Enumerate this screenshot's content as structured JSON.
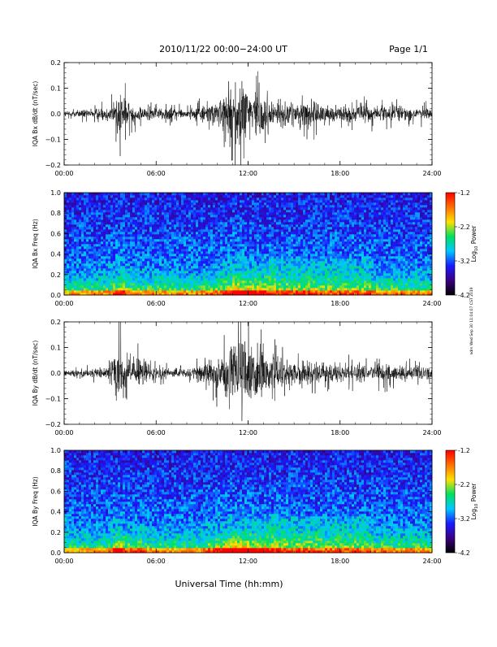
{
  "header": {
    "title": "2010/11/22  00:00−24:00 UT",
    "page": "Page 1/1"
  },
  "footer": {
    "xlabel": "Universal Time (hh:mm)"
  },
  "side_stamp": "ndm Wed Sep 30 11:04:07 CST 2019",
  "colorbar": {
    "label_base": "Log",
    "label_sub": "10",
    "label_tail": " Power",
    "ticks": [
      "-1.2",
      "-2.2",
      "-3.2",
      "-4.2"
    ],
    "colors": [
      "#000000",
      "#3a0080",
      "#1a1aff",
      "#00c8ff",
      "#00e060",
      "#ffe000",
      "#ff7000",
      "#ff0000"
    ]
  },
  "chart_data": [
    {
      "type": "line",
      "ylabel": "IQA Bx dB/dt (nT/sec)",
      "xlim": [
        0,
        24
      ],
      "ylim": [
        -0.2,
        0.2
      ],
      "x_ticks": [
        "00:00",
        "06:00",
        "12:00",
        "18:00",
        "24:00"
      ],
      "y_ticks": [
        "0.2",
        "0.1",
        "0.0",
        "−0.1",
        "−0.2"
      ],
      "x_tick_values": [
        0,
        6,
        12,
        18,
        24
      ],
      "y_tick_values": [
        0.2,
        0.1,
        0.0,
        -0.1,
        -0.2
      ],
      "description_envelope": {
        "hours": [
          0,
          2,
          3,
          3.7,
          4.3,
          5,
          6,
          7,
          8,
          9,
          10,
          10.5,
          11,
          11.5,
          12,
          12.5,
          13,
          13.5,
          14,
          15,
          16,
          17,
          18,
          19,
          20,
          21,
          22,
          23,
          24
        ],
        "amplitude": [
          0.02,
          0.03,
          0.05,
          0.15,
          0.06,
          0.05,
          0.04,
          0.04,
          0.03,
          0.05,
          0.08,
          0.12,
          0.2,
          0.2,
          0.2,
          0.16,
          0.12,
          0.1,
          0.09,
          0.07,
          0.09,
          0.06,
          0.05,
          0.05,
          0.06,
          0.05,
          0.05,
          0.04,
          0.04
        ]
      }
    },
    {
      "type": "heatmap",
      "ylabel": "IQA Bx Freq (Hz)",
      "xlim": [
        0,
        24
      ],
      "ylim": [
        0.0,
        1.0
      ],
      "x_ticks": [
        "00:00",
        "06:00",
        "12:00",
        "18:00",
        "24:00"
      ],
      "y_ticks": [
        "1.0",
        "0.8",
        "0.6",
        "0.4",
        "0.2",
        "0.0"
      ],
      "x_tick_values": [
        0,
        6,
        12,
        18,
        24
      ],
      "y_tick_values": [
        1.0,
        0.8,
        0.6,
        0.4,
        0.2,
        0.0
      ],
      "zlim": [
        -4.2,
        -1.2
      ]
    },
    {
      "type": "line",
      "ylabel": "IQA By dB/dt (nT/sec)",
      "xlim": [
        0,
        24
      ],
      "ylim": [
        -0.2,
        0.2
      ],
      "x_ticks": [
        "00:00",
        "06:00",
        "12:00",
        "18:00",
        "24:00"
      ],
      "y_ticks": [
        "0.2",
        "0.1",
        "0.0",
        "−0.1",
        "−0.2"
      ],
      "x_tick_values": [
        0,
        6,
        12,
        18,
        24
      ],
      "y_tick_values": [
        0.2,
        0.1,
        0.0,
        -0.1,
        -0.2
      ],
      "description_envelope": {
        "hours": [
          0,
          2,
          3,
          3.5,
          4,
          4.5,
          5,
          5.5,
          6,
          7,
          8,
          9,
          10,
          10.5,
          11,
          11.5,
          12,
          12.5,
          13,
          13.5,
          14,
          15,
          16,
          17,
          18,
          19,
          20,
          21,
          22,
          23,
          24
        ],
        "amplitude": [
          0.02,
          0.03,
          0.06,
          0.2,
          0.1,
          0.08,
          0.12,
          0.05,
          0.04,
          0.03,
          0.03,
          0.06,
          0.12,
          0.16,
          0.2,
          0.2,
          0.2,
          0.18,
          0.15,
          0.12,
          0.1,
          0.07,
          0.08,
          0.06,
          0.05,
          0.06,
          0.05,
          0.06,
          0.05,
          0.05,
          0.04
        ]
      }
    },
    {
      "type": "heatmap",
      "ylabel": "IQA By Freq (Hz)",
      "xlim": [
        0,
        24
      ],
      "ylim": [
        0.0,
        1.0
      ],
      "x_ticks": [
        "00:00",
        "06:00",
        "12:00",
        "18:00",
        "24:00"
      ],
      "y_ticks": [
        "1.0",
        "0.8",
        "0.6",
        "0.4",
        "0.2",
        "0.0"
      ],
      "x_tick_values": [
        0,
        6,
        12,
        18,
        24
      ],
      "y_tick_values": [
        1.0,
        0.8,
        0.6,
        0.4,
        0.2,
        0.0
      ],
      "zlim": [
        -4.2,
        -1.2
      ]
    }
  ]
}
